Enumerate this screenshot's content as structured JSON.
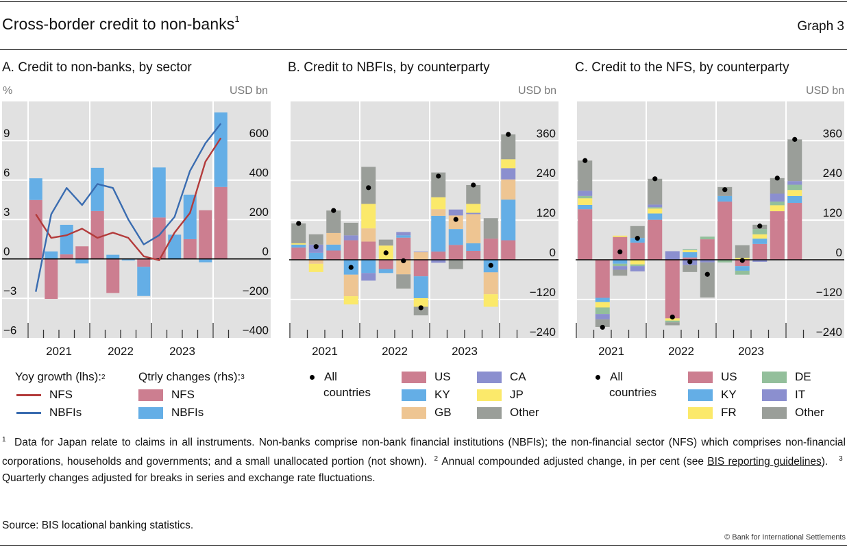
{
  "header": {
    "title": "Cross-border credit to non-banks",
    "title_footnote": "1",
    "graph_label": "Graph 3"
  },
  "colors": {
    "plot_bg": "#e1e1e1",
    "grid": "#ffffff",
    "NFS_bar": "#cc7e90",
    "NBFI_bar": "#64aee6",
    "NFS_line": "#b33b3b",
    "NBFI_line": "#3a6cb0",
    "US": "#cc7e90",
    "KY": "#64aee6",
    "GB": "#eec592",
    "CA": "#8b8fcf",
    "JP": "#fbe96a",
    "FR": "#fbe96a",
    "DE": "#93bf9b",
    "IT": "#8b8fcf",
    "Other": "#9a9e99",
    "dot": "#000000"
  },
  "panels": {
    "A": {
      "title": "A. Credit to non-banks, by sector",
      "left_unit": "%",
      "right_unit": "USD bn",
      "legend": {
        "lines_header": "Yoy growth (lhs):",
        "lines_header_fn": "2",
        "bars_header": "Qtrly changes (rhs):",
        "bars_header_fn": "3",
        "line_items": [
          "NFS",
          "NBFIs"
        ],
        "bar_items": [
          "NFS",
          "NBFIs"
        ]
      }
    },
    "B": {
      "title": "B. Credit to NBFIs, by counterparty",
      "right_unit": "USD bn",
      "legend": {
        "dot_label_1": "All",
        "dot_label_2": "countries",
        "items": [
          "US",
          "KY",
          "GB",
          "CA",
          "JP",
          "Other"
        ]
      }
    },
    "C": {
      "title": "C. Credit to the NFS, by counterparty",
      "right_unit": "USD bn",
      "legend": {
        "dot_label_1": "All",
        "dot_label_2": "countries",
        "items": [
          "US",
          "KY",
          "FR",
          "DE",
          "IT",
          "Other"
        ]
      }
    }
  },
  "chart_data": [
    {
      "id": "A",
      "type": "bar",
      "title": "A. Credit to non-banks, by sector",
      "xlabel": "",
      "x_tick_labels": [
        "2021",
        "2022",
        "2023"
      ],
      "categories": [
        "2021Q1",
        "2021Q2",
        "2021Q3",
        "2021Q4",
        "2022Q1",
        "2022Q2",
        "2022Q3",
        "2022Q4",
        "2023Q1",
        "2023Q2",
        "2023Q3",
        "2023Q4",
        "2024Q1"
      ],
      "ylabel_left": "%",
      "ylabel_right": "USD bn",
      "ylim_left": [
        -6,
        12
      ],
      "ylim_right": [
        -400,
        800
      ],
      "yticks_left": [
        -6,
        -3,
        0,
        3,
        6,
        9
      ],
      "yticks_right": [
        -400,
        -200,
        0,
        200,
        400,
        600
      ],
      "stacked": true,
      "grid": true,
      "series": [
        {
          "name": "NFS",
          "kind": "bar",
          "axis": "right",
          "values": [
            299,
            -203,
            23,
            64,
            243,
            -173,
            0,
            -40,
            210,
            0,
            100,
            247,
            365
          ]
        },
        {
          "name": "NBFIs",
          "kind": "bar",
          "axis": "right",
          "values": [
            110,
            38,
            150,
            -23,
            219,
            21,
            -8,
            -148,
            254,
            123,
            226,
            -17,
            378
          ]
        },
        {
          "name": "NFS",
          "kind": "line",
          "axis": "left",
          "values": [
            3.4,
            1.6,
            1.8,
            2.3,
            1.6,
            2.0,
            1.6,
            0.2,
            -0.1,
            2.0,
            3.5,
            7.4,
            9.2
          ]
        },
        {
          "name": "NBFIs",
          "kind": "line",
          "axis": "left",
          "values": [
            -2.5,
            3.4,
            5.4,
            4.1,
            5.7,
            5.4,
            3.0,
            1.1,
            1.8,
            3.2,
            6.7,
            8.8,
            10.3
          ]
        }
      ]
    },
    {
      "id": "B",
      "type": "bar",
      "title": "B. Credit to NBFIs, by counterparty",
      "xlabel": "",
      "x_tick_labels": [
        "2021",
        "2022",
        "2023"
      ],
      "categories": [
        "2021Q1",
        "2021Q2",
        "2021Q3",
        "2021Q4",
        "2022Q1",
        "2022Q2",
        "2022Q3",
        "2022Q4",
        "2023Q1",
        "2023Q2",
        "2023Q3",
        "2023Q4",
        "2024Q1"
      ],
      "ylabel_right": "USD bn",
      "ylim": [
        -240,
        480
      ],
      "yticks": [
        -240,
        -120,
        0,
        120,
        240,
        360
      ],
      "stacked": true,
      "grid": true,
      "series": [
        {
          "name": "US",
          "values": [
            37,
            0,
            28,
            59,
            55,
            -28,
            67,
            -50,
            25,
            45,
            27,
            64,
            59
          ]
        },
        {
          "name": "KY",
          "values": [
            9,
            21,
            18,
            -45,
            -40,
            -12,
            7,
            -66,
            108,
            48,
            23,
            -38,
            123
          ]
        },
        {
          "name": "GB",
          "values": [
            0,
            -12,
            35,
            -65,
            40,
            0,
            -44,
            23,
            20,
            41,
            88,
            -66,
            61
          ]
        },
        {
          "name": "CA",
          "values": [
            0,
            25,
            0,
            15,
            -23,
            0,
            10,
            2,
            -9,
            18,
            4,
            0,
            34
          ]
        },
        {
          "name": "JP",
          "values": [
            4,
            -25,
            0,
            -25,
            74,
            43,
            0,
            -26,
            36,
            0,
            27,
            -38,
            27
          ]
        },
        {
          "name": "Other",
          "values": [
            60,
            31,
            68,
            38,
            112,
            18,
            -43,
            -26,
            75,
            -28,
            57,
            62,
            75
          ]
        }
      ],
      "dots": {
        "name": "All countries",
        "values": [
          110,
          40,
          149,
          -23,
          218,
          21,
          -3,
          -145,
          253,
          122,
          226,
          -17,
          379
        ]
      }
    },
    {
      "id": "C",
      "type": "bar",
      "title": "C. Credit to the NFS, by counterparty",
      "xlabel": "",
      "x_tick_labels": [
        "2021",
        "2022",
        "2023"
      ],
      "categories": [
        "2021Q1",
        "2021Q2",
        "2021Q3",
        "2021Q4",
        "2022Q1",
        "2022Q2",
        "2022Q3",
        "2022Q4",
        "2023Q1",
        "2023Q2",
        "2023Q3",
        "2023Q4",
        "2024Q1"
      ],
      "ylabel_right": "USD bn",
      "ylim": [
        -240,
        480
      ],
      "yticks": [
        -240,
        -120,
        0,
        120,
        240,
        360
      ],
      "stacked": true,
      "grid": true,
      "series": [
        {
          "name": "US",
          "values": [
            153,
            -115,
            69,
            52,
            121,
            -177,
            7,
            62,
            176,
            -19,
            48,
            147,
            172
          ]
        },
        {
          "name": "KY",
          "values": [
            13,
            -13,
            -12,
            14,
            19,
            0,
            16,
            0,
            17,
            -14,
            16,
            0,
            21
          ]
        },
        {
          "name": "FR",
          "values": [
            20,
            -16,
            4,
            -14,
            15,
            -7,
            6,
            0,
            0,
            6,
            13,
            18,
            18
          ]
        },
        {
          "name": "DE",
          "values": [
            7,
            -20,
            -7,
            -5,
            4,
            -5,
            3,
            8,
            -8,
            -12,
            16,
            11,
            16
          ]
        },
        {
          "name": "IT",
          "values": [
            16,
            -16,
            -11,
            -16,
            8,
            26,
            -16,
            -8,
            0,
            0,
            -6,
            24,
            11
          ]
        },
        {
          "name": "Other",
          "values": [
            91,
            -23,
            -18,
            36,
            78,
            -9,
            -21,
            -106,
            27,
            38,
            13,
            47,
            126
          ]
        }
      ],
      "dots": {
        "name": "All countries",
        "values": [
          300,
          -204,
          24,
          65,
          245,
          -173,
          -6,
          -44,
          212,
          -2,
          102,
          247,
          364
        ]
      }
    }
  ],
  "footnotes": {
    "fn1_num": "1",
    "fn1_text": "Data for Japan relate to claims in all instruments. Non-banks comprise non-bank financial institutions (NBFIs); the non-financial sector (NFS) which comprises non-financial corporations, households and governments; and a small unallocated portion (not shown).",
    "fn2_num": "2",
    "fn2_text_before": "Annual compounded adjusted change, in per cent (see ",
    "fn2_link": "BIS reporting guidelines",
    "fn2_text_after": ").",
    "fn3_num": "3",
    "fn3_text": "Quarterly changes adjusted for breaks in series and exchange rate fluctuations.",
    "source": "Source: BIS locational banking statistics.",
    "copyright": "© Bank for International Settlements"
  }
}
